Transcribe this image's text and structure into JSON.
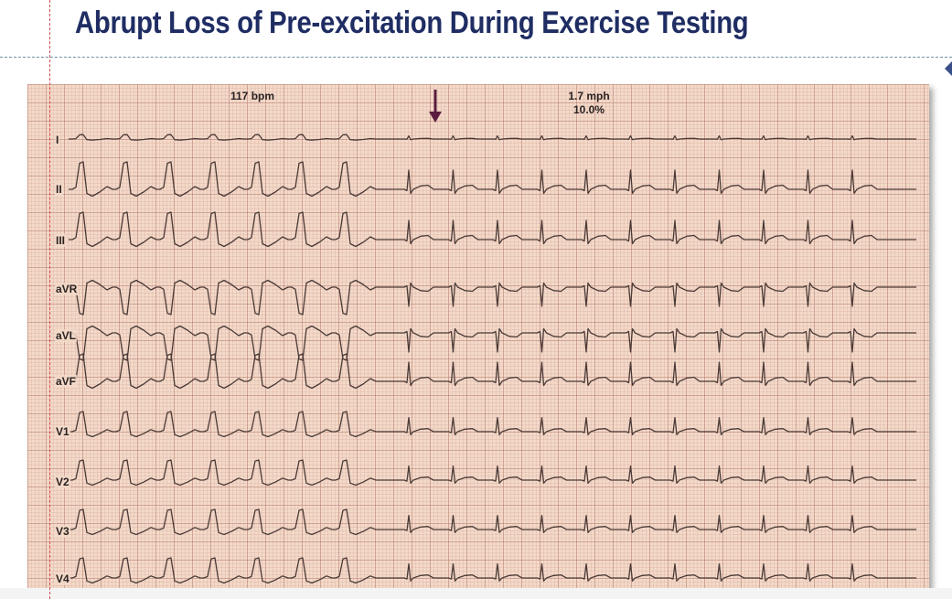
{
  "slide": {
    "title": "Abrupt Loss of Pre-excitation During Exercise Testing"
  },
  "ecg": {
    "heart_rate_label": "117 bpm",
    "speed_label": "1.7 mph",
    "grade_label": "10.0%",
    "arrow_color": "#5a1d3f",
    "trace_color": "#4a3a36",
    "leads": [
      "I",
      "II",
      "III",
      "aVR",
      "aVL",
      "aVF",
      "V1",
      "V2",
      "V3",
      "V4"
    ]
  }
}
